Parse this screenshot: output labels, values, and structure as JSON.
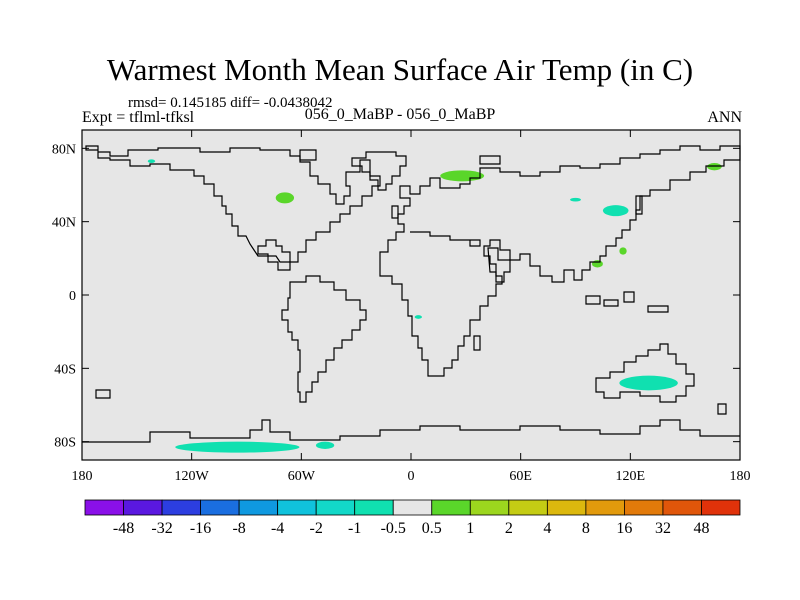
{
  "title": "Warmest Month Mean Surface Air Temp (in C)",
  "stats": "rmsd= 0.145185 diff= -0.0438042",
  "experiment": "Expt = tflml-tfksl",
  "comparison": "056_0_MaBP - 056_0_MaBP",
  "season": "ANN",
  "lat_ticks": [
    {
      "value": 80,
      "label": "80N"
    },
    {
      "value": 40,
      "label": "40N"
    },
    {
      "value": 0,
      "label": "0"
    },
    {
      "value": -40,
      "label": "40S"
    },
    {
      "value": -80,
      "label": "80S"
    }
  ],
  "lon_ticks": [
    {
      "value": -180,
      "label": "180"
    },
    {
      "value": -120,
      "label": "120W"
    },
    {
      "value": -60,
      "label": "60W"
    },
    {
      "value": 0,
      "label": "0"
    },
    {
      "value": 60,
      "label": "60E"
    },
    {
      "value": 120,
      "label": "120E"
    },
    {
      "value": 180,
      "label": "180"
    }
  ],
  "colorbar": {
    "colors": [
      "#8a10e8",
      "#5a18e0",
      "#2c3ee0",
      "#1a6ee0",
      "#0f99e0",
      "#10c2dc",
      "#12d8c8",
      "#10e0b0",
      "#e6e6e6",
      "#5ad62a",
      "#9cd61e",
      "#c4cc14",
      "#dcb80e",
      "#e29a0c",
      "#e27a0a",
      "#e0560a",
      "#e0320a"
    ],
    "labels": [
      "-48",
      "-32",
      "-16",
      "-8",
      "-4",
      "-2",
      "-1",
      "-0.5",
      "0.5",
      "1",
      "2",
      "4",
      "8",
      "16",
      "32",
      "48"
    ]
  },
  "anomaly_regions": [
    {
      "category": "1",
      "color": "#5ad62a",
      "lon": -69,
      "lat": 53,
      "rx": 5,
      "ry": 3
    },
    {
      "category": "1",
      "color": "#5ad62a",
      "lon": 28,
      "lat": 65,
      "rx": 12,
      "ry": 3
    },
    {
      "category": "1",
      "color": "#5ad62a",
      "lon": 102,
      "lat": 17,
      "rx": 3,
      "ry": 2
    },
    {
      "category": "1",
      "color": "#5ad62a",
      "lon": 116,
      "lat": 24,
      "rx": 2,
      "ry": 2
    },
    {
      "category": "1",
      "color": "#5ad62a",
      "lon": 166,
      "lat": 70,
      "rx": 4,
      "ry": 2
    },
    {
      "category": "-0.5",
      "color": "#10e0b0",
      "lon": 112,
      "lat": 46,
      "rx": 7,
      "ry": 3
    },
    {
      "category": "-0.5",
      "color": "#10e0b0",
      "lon": 130,
      "lat": -48,
      "rx": 16,
      "ry": 4
    },
    {
      "category": "-0.5",
      "color": "#10e0b0",
      "lon": -95,
      "lat": -83,
      "rx": 34,
      "ry": 3
    },
    {
      "category": "-0.5",
      "color": "#10e0b0",
      "lon": -47,
      "lat": -82,
      "rx": 5,
      "ry": 2
    },
    {
      "category": "-0.5",
      "color": "#10e0b0",
      "lon": -142,
      "lat": 73,
      "rx": 2,
      "ry": 1
    },
    {
      "category": "-0.5",
      "color": "#10e0b0",
      "lon": 90,
      "lat": 52,
      "rx": 3,
      "ry": 1
    },
    {
      "category": "-0.5",
      "color": "#10e0b0",
      "lon": 4,
      "lat": -12,
      "rx": 2,
      "ry": 1
    }
  ]
}
